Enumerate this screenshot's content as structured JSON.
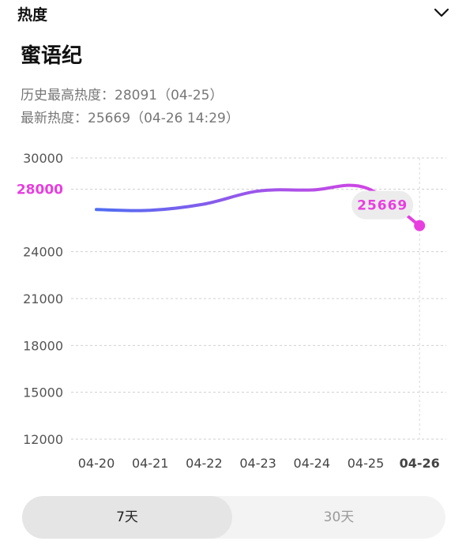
{
  "header": {
    "section_label": "热度",
    "collapse_icon": "chevron-down-icon"
  },
  "title": "蜜语纪",
  "stats": {
    "max_heat": "历史最高热度：28091（04-25）",
    "latest_heat": "最新热度：25669（04-26 14:29）"
  },
  "chart_data": {
    "type": "line",
    "x": [
      "04-20",
      "04-21",
      "04-22",
      "04-23",
      "04-24",
      "04-25",
      "04-26"
    ],
    "series": [
      {
        "values": [
          26700,
          26650,
          27050,
          27880,
          27950,
          28091,
          25669
        ]
      }
    ],
    "y_ticks": [
      30000,
      28000,
      24000,
      21000,
      18000,
      15000,
      12000
    ],
    "highlight_tick": 28000,
    "ylim": [
      12000,
      30000
    ],
    "latest_label": "25669",
    "grid": true,
    "colors": {
      "start": "#4f6df2",
      "end": "#e83ee0",
      "highlight": "#e83ee0",
      "grid": "#cfcfcf",
      "tick": "#555555"
    }
  },
  "tabs": [
    {
      "label": "7天",
      "active": true
    },
    {
      "label": "30天",
      "active": false
    }
  ]
}
